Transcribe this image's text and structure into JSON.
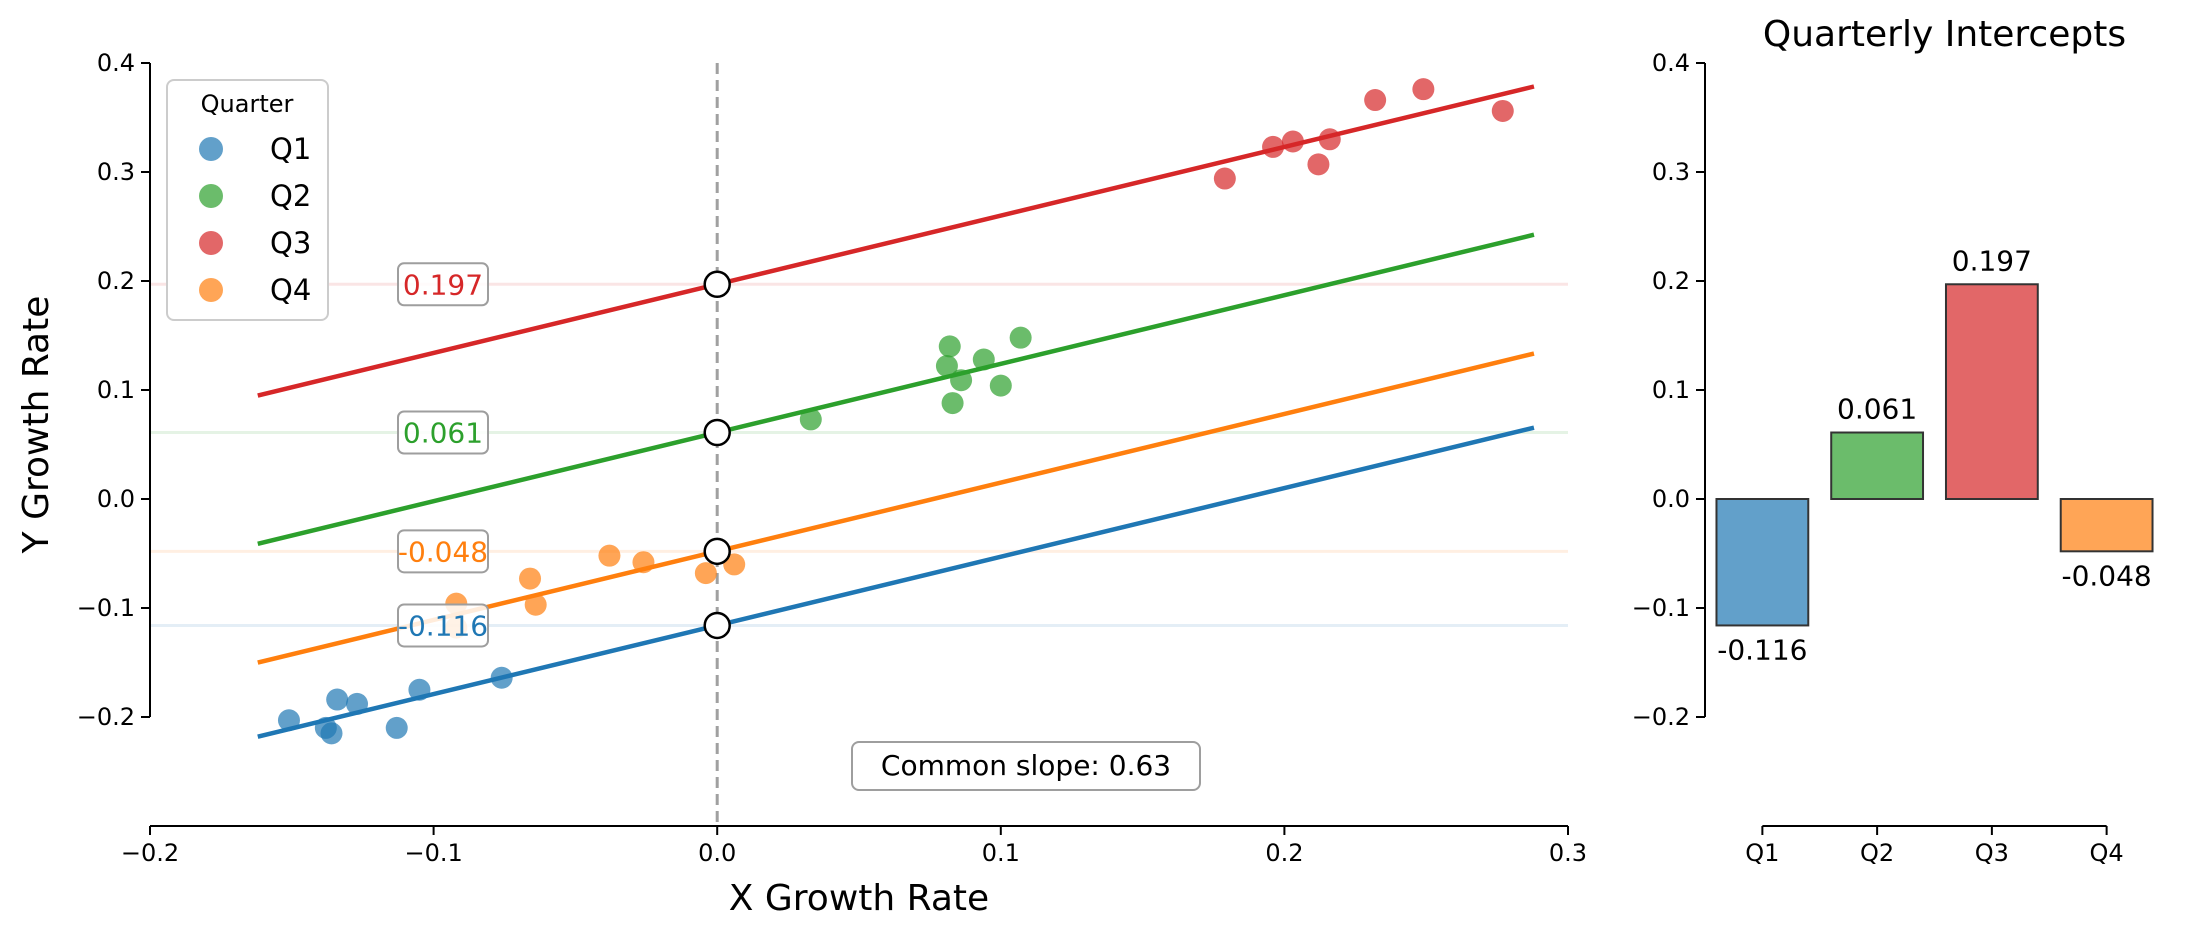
{
  "chart_data": [
    {
      "type": "scatter",
      "xlabel": "X Growth Rate",
      "ylabel": "Y Growth Rate",
      "xlim": [
        -0.2,
        0.3
      ],
      "ylim": [
        -0.3,
        0.4
      ],
      "xticks": [
        "−0.2",
        "−0.1",
        "0.0",
        "0.1",
        "0.2",
        "0.3"
      ],
      "yticks": [
        "−0.2",
        "−0.1",
        "0.0",
        "0.1",
        "0.2",
        "0.3",
        "0.4"
      ],
      "common_slope": 0.63,
      "slope_label": "Common slope: 0.63",
      "fit_x_range": [
        -0.162,
        0.288
      ],
      "grid": false,
      "legend": {
        "title": "Quarter",
        "placement": "top-left"
      },
      "series": [
        {
          "name": "Q1",
          "color": "#1f77b4",
          "intercept": -0.116,
          "intercept_label": "-0.116",
          "points": [
            [
              -0.151,
              -0.203
            ],
            [
              -0.138,
              -0.21
            ],
            [
              -0.136,
              -0.215
            ],
            [
              -0.134,
              -0.184
            ],
            [
              -0.127,
              -0.188
            ],
            [
              -0.113,
              -0.21
            ],
            [
              -0.105,
              -0.175
            ],
            [
              -0.076,
              -0.164
            ]
          ]
        },
        {
          "name": "Q2",
          "color": "#2ca02c",
          "intercept": 0.061,
          "intercept_label": "0.061",
          "points": [
            [
              0.033,
              0.073
            ],
            [
              0.081,
              0.122
            ],
            [
              0.082,
              0.14
            ],
            [
              0.083,
              0.088
            ],
            [
              0.086,
              0.109
            ],
            [
              0.094,
              0.128
            ],
            [
              0.1,
              0.104
            ],
            [
              0.107,
              0.148
            ]
          ]
        },
        {
          "name": "Q3",
          "color": "#d62728",
          "intercept": 0.197,
          "intercept_label": "0.197",
          "points": [
            [
              0.179,
              0.294
            ],
            [
              0.196,
              0.323
            ],
            [
              0.203,
              0.328
            ],
            [
              0.212,
              0.307
            ],
            [
              0.216,
              0.33
            ],
            [
              0.232,
              0.366
            ],
            [
              0.249,
              0.376
            ],
            [
              0.277,
              0.356
            ]
          ]
        },
        {
          "name": "Q4",
          "color": "#ff7f0e",
          "intercept": -0.048,
          "intercept_label": "-0.048",
          "points": [
            [
              -0.092,
              -0.096
            ],
            [
              -0.066,
              -0.073
            ],
            [
              -0.064,
              -0.097
            ],
            [
              -0.038,
              -0.052
            ],
            [
              -0.026,
              -0.058
            ],
            [
              -0.004,
              -0.068
            ],
            [
              0.006,
              -0.06
            ],
            [
              -0.092,
              -0.118
            ]
          ]
        }
      ]
    },
    {
      "type": "bar",
      "title": "Quarterly Intercepts",
      "categories": [
        "Q1",
        "Q2",
        "Q3",
        "Q4"
      ],
      "values": [
        -0.116,
        0.061,
        0.197,
        -0.048
      ],
      "value_labels": [
        "-0.116",
        "0.061",
        "0.197",
        "-0.048"
      ],
      "colors": [
        "#1f77b4",
        "#2ca02c",
        "#d62728",
        "#ff7f0e"
      ],
      "ylim": [
        -0.3,
        0.4
      ],
      "yticks": [
        "−0.2",
        "−0.1",
        "0.0",
        "0.1",
        "0.2",
        "0.3",
        "0.4"
      ],
      "grid": false
    }
  ]
}
